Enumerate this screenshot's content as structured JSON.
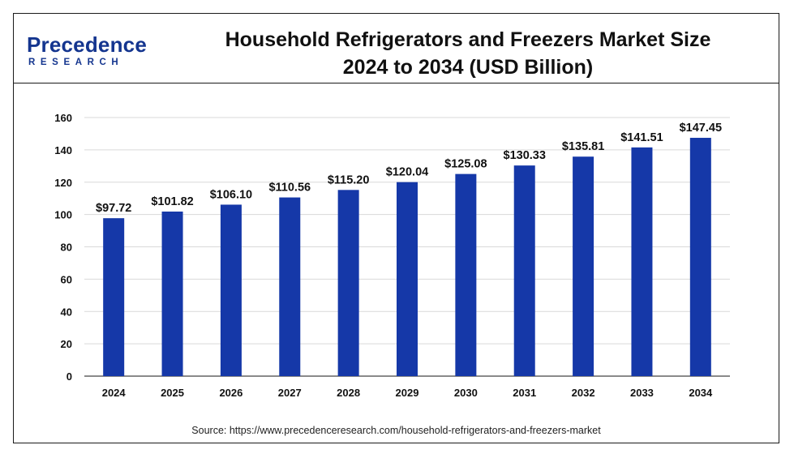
{
  "header": {
    "logo_word": "Precedence",
    "logo_sub": "RESEARCH",
    "title_line1": "Household Refrigerators and Freezers Market Size",
    "title_line2": "2024 to 2034 (USD Billion)"
  },
  "footer": {
    "source": "Source: https://www.precedenceresearch.com/household-refrigerators-and-freezers-market"
  },
  "colors": {
    "bar": "#1538a8",
    "grid": "#d9d9d9",
    "axis": "#444444",
    "logo_primary": "#14358f",
    "logo_accent": "#1ea6d9"
  },
  "chart_data": {
    "type": "bar",
    "categories": [
      "2024",
      "2025",
      "2026",
      "2027",
      "2028",
      "2029",
      "2030",
      "2031",
      "2032",
      "2033",
      "2034"
    ],
    "values": [
      97.72,
      101.82,
      106.1,
      110.56,
      115.2,
      120.04,
      125.08,
      130.33,
      135.81,
      141.51,
      147.45
    ],
    "data_labels": [
      "$97.72",
      "$101.82",
      "$106.10",
      "$110.56",
      "$115.20",
      "$120.04",
      "$125.08",
      "$130.33",
      "$135.81",
      "$141.51",
      "$147.45"
    ],
    "yticks": [
      0,
      20,
      40,
      60,
      80,
      100,
      120,
      140,
      160
    ],
    "ylim": [
      0,
      160
    ],
    "xlabel": "",
    "ylabel": "",
    "grid": true,
    "legend": "none"
  }
}
